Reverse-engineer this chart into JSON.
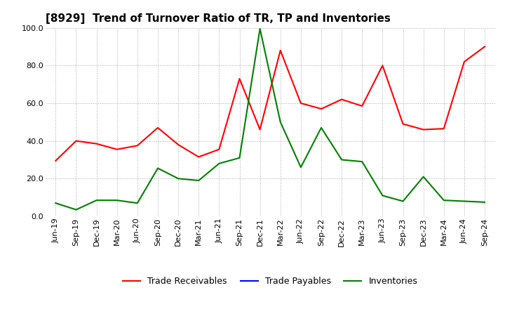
{
  "title": "[8929]  Trend of Turnover Ratio of TR, TP and Inventories",
  "labels": [
    "Jun-19",
    "Sep-19",
    "Dec-19",
    "Mar-20",
    "Jun-20",
    "Sep-20",
    "Dec-20",
    "Mar-21",
    "Jun-21",
    "Sep-21",
    "Dec-21",
    "Mar-22",
    "Jun-22",
    "Sep-22",
    "Dec-22",
    "Mar-23",
    "Jun-23",
    "Sep-23",
    "Dec-23",
    "Mar-24",
    "Jun-24",
    "Sep-24"
  ],
  "trade_receivables": [
    29.5,
    40.0,
    38.5,
    35.5,
    37.5,
    47.0,
    38.0,
    31.5,
    35.5,
    73.0,
    46.0,
    88.0,
    60.0,
    57.0,
    62.0,
    58.5,
    80.0,
    49.0,
    46.0,
    46.5,
    82.0,
    90.0
  ],
  "trade_payables": [
    null,
    null,
    null,
    null,
    null,
    null,
    null,
    null,
    null,
    null,
    null,
    null,
    null,
    null,
    null,
    null,
    null,
    null,
    null,
    null,
    null,
    null
  ],
  "inventories": [
    7.0,
    3.5,
    8.5,
    8.5,
    7.0,
    25.5,
    20.0,
    19.0,
    28.0,
    31.0,
    99.5,
    50.0,
    26.0,
    47.0,
    30.0,
    29.0,
    11.0,
    8.0,
    21.0,
    8.5,
    8.0,
    7.5
  ],
  "tr_color": "#FF0000",
  "tp_color": "#0000FF",
  "inv_color": "#008000",
  "ylim": [
    0.0,
    100.0
  ],
  "yticks": [
    0.0,
    20.0,
    40.0,
    60.0,
    80.0,
    100.0
  ],
  "background_color": "#FFFFFF",
  "plot_bg_color": "#FFFFFF",
  "grid_color": "#AAAAAA",
  "legend_labels": [
    "Trade Receivables",
    "Trade Payables",
    "Inventories"
  ],
  "title_fontsize": 11,
  "tick_fontsize": 8,
  "legend_fontsize": 9
}
